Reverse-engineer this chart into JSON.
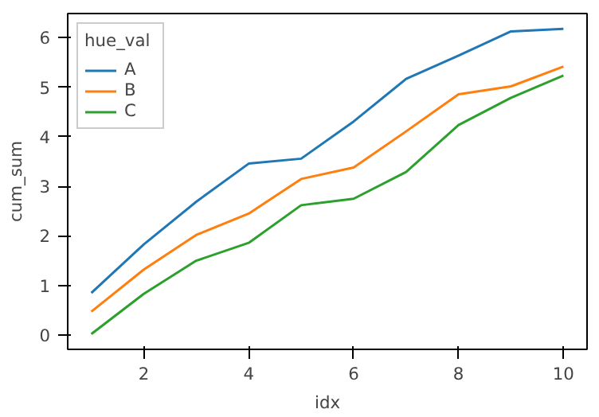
{
  "chart_data": {
    "type": "line",
    "xlabel": "idx",
    "ylabel": "cum_sum",
    "legend_title": "hue_val",
    "legend": "top left",
    "grid": false,
    "x": [
      1,
      2,
      3,
      4,
      5,
      6,
      7,
      8,
      9,
      10
    ],
    "xlim": [
      0.55,
      10.45
    ],
    "xticks": [
      2,
      4,
      6,
      8,
      10
    ],
    "ylim": [
      -0.29,
      6.49
    ],
    "yticks": [
      0,
      1,
      2,
      3,
      4,
      5,
      6
    ],
    "series": [
      {
        "name": "A",
        "color": "#1f77b4",
        "values": [
          0.85,
          1.83,
          2.69,
          3.46,
          3.56,
          4.31,
          5.17,
          5.64,
          6.13,
          6.18
        ]
      },
      {
        "name": "B",
        "color": "#ff7f0e",
        "values": [
          0.47,
          1.32,
          2.02,
          2.45,
          3.15,
          3.38,
          4.11,
          4.86,
          5.02,
          5.42
        ]
      },
      {
        "name": "C",
        "color": "#2ca02c",
        "values": [
          0.02,
          0.83,
          1.5,
          1.86,
          2.62,
          2.75,
          3.29,
          4.24,
          4.79,
          5.24
        ]
      }
    ]
  }
}
